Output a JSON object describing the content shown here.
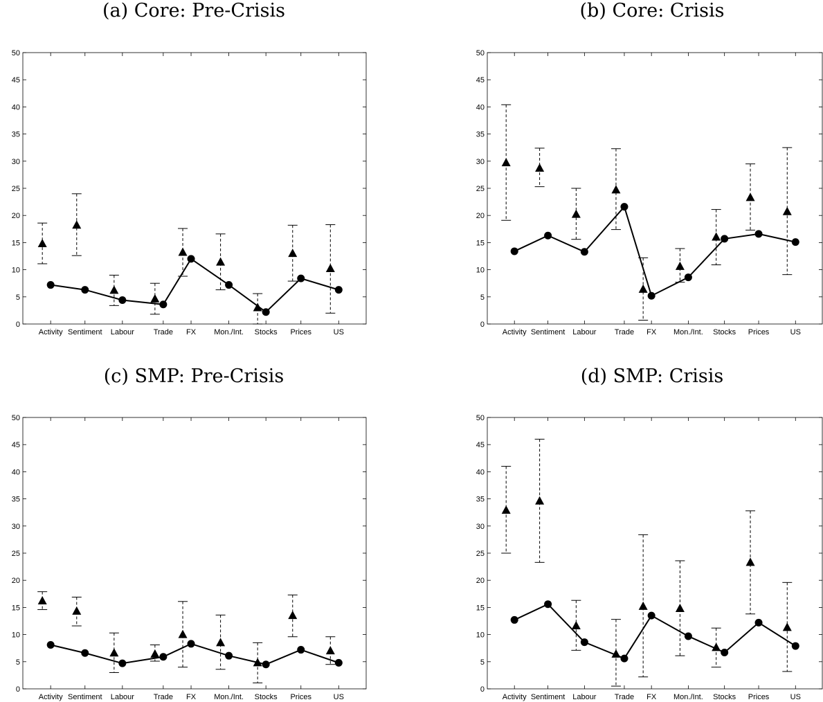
{
  "panels": [
    {
      "title": "(a) Core: Pre-Crisis"
    },
    {
      "title": "(b) Core: Crisis"
    },
    {
      "title": "(c) SMP: Pre-Crisis"
    },
    {
      "title": "(d) SMP: Crisis"
    }
  ],
  "chart_data": [
    {
      "type": "line",
      "title": "(a) Core: Pre-Crisis",
      "ylim": [
        0,
        50
      ],
      "yticks": [
        0,
        5,
        10,
        15,
        20,
        25,
        30,
        35,
        40,
        45,
        50
      ],
      "categories": [
        "Activity",
        "Sentiment",
        "Labour",
        "Trade",
        "FX",
        "Mon./Int.",
        "Stocks",
        "Prices",
        "US"
      ],
      "series": [
        {
          "values": [
            7.2,
            6.3,
            4.4,
            3.6,
            12.0,
            7.2,
            2.2,
            8.4,
            6.3
          ]
        },
        {
          "values": [
            14.8,
            18.2,
            6.2,
            4.6,
            13.2,
            11.4,
            3.0,
            13.0,
            10.2
          ],
          "lower": [
            11.1,
            12.6,
            3.4,
            1.8,
            8.8,
            6.3,
            0.0,
            7.9,
            2.0
          ],
          "upper": [
            18.6,
            24.0,
            9.0,
            7.5,
            17.6,
            16.6,
            5.6,
            18.2,
            18.3
          ]
        }
      ]
    },
    {
      "type": "line",
      "title": "(b) Core: Crisis",
      "ylim": [
        0,
        50
      ],
      "yticks": [
        0,
        5,
        10,
        15,
        20,
        25,
        30,
        35,
        40,
        45,
        50
      ],
      "categories": [
        "Activity",
        "Sentiment",
        "Labour",
        "Trade",
        "FX",
        "Mon./Int.",
        "Stocks",
        "Prices",
        "US"
      ],
      "series": [
        {
          "values": [
            13.4,
            16.3,
            13.3,
            21.6,
            5.2,
            8.6,
            15.7,
            16.6,
            15.1
          ]
        },
        {
          "values": [
            29.7,
            28.7,
            20.2,
            24.7,
            6.4,
            10.6,
            16.0,
            23.3,
            20.7
          ],
          "lower": [
            19.1,
            25.3,
            15.6,
            17.4,
            0.7,
            7.7,
            10.9,
            17.3,
            9.1
          ],
          "upper": [
            40.4,
            32.4,
            25.0,
            32.3,
            12.2,
            13.9,
            21.1,
            29.5,
            32.5
          ]
        }
      ]
    },
    {
      "type": "line",
      "title": "(c) SMP: Pre-Crisis",
      "ylim": [
        0,
        50
      ],
      "yticks": [
        0,
        5,
        10,
        15,
        20,
        25,
        30,
        35,
        40,
        45,
        50
      ],
      "categories": [
        "Activity",
        "Sentiment",
        "Labour",
        "Trade",
        "FX",
        "Mon./Int.",
        "Stocks",
        "Prices",
        "US"
      ],
      "series": [
        {
          "values": [
            8.1,
            6.6,
            4.7,
            5.9,
            8.3,
            6.1,
            4.5,
            7.2,
            4.8
          ]
        },
        {
          "values": [
            16.2,
            14.3,
            6.6,
            6.4,
            10.0,
            8.5,
            4.8,
            13.5,
            7.0
          ],
          "lower": [
            14.6,
            11.6,
            3.0,
            5.1,
            4.0,
            3.6,
            1.1,
            9.6,
            4.5
          ],
          "upper": [
            17.9,
            16.9,
            10.3,
            8.1,
            16.1,
            13.6,
            8.5,
            17.3,
            9.6
          ]
        }
      ]
    },
    {
      "type": "line",
      "title": "(d) SMP: Crisis",
      "ylim": [
        0,
        50
      ],
      "yticks": [
        0,
        5,
        10,
        15,
        20,
        25,
        30,
        35,
        40,
        45,
        50
      ],
      "categories": [
        "Activity",
        "Sentiment",
        "Labour",
        "Trade",
        "FX",
        "Mon./Int.",
        "Stocks",
        "Prices",
        "US"
      ],
      "series": [
        {
          "values": [
            12.7,
            15.6,
            8.6,
            5.6,
            13.5,
            9.7,
            6.7,
            12.2,
            7.9
          ]
        },
        {
          "values": [
            32.9,
            34.6,
            11.6,
            6.4,
            15.2,
            14.8,
            7.6,
            23.3,
            11.3
          ],
          "lower": [
            25.0,
            23.3,
            7.1,
            0.5,
            2.2,
            6.1,
            4.0,
            13.8,
            3.2
          ],
          "upper": [
            41.0,
            46.0,
            16.3,
            12.8,
            28.4,
            23.6,
            11.2,
            32.8,
            19.6
          ]
        }
      ]
    }
  ]
}
